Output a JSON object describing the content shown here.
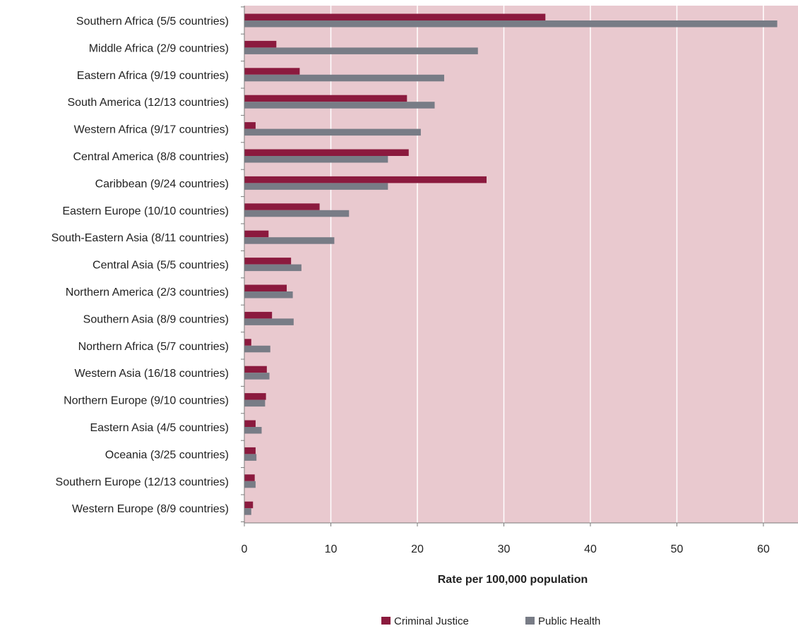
{
  "chart_data": {
    "type": "bar",
    "orientation": "horizontal",
    "categories": [
      "Southern Africa (5/5 countries)",
      "Middle Africa (2/9 countries)",
      "Eastern Africa (9/19 countries)",
      "South America (12/13 countries)",
      "Western Africa (9/17 countries)",
      "Central America (8/8 countries)",
      "Caribbean (9/24 countries)",
      "Eastern Europe (10/10 countries)",
      "South-Eastern Asia (8/11 countries)",
      "Central Asia (5/5 countries)",
      "Northern America (2/3 countries)",
      "Southern Asia (8/9 countries)",
      "Northern Africa (5/7 countries)",
      "Western Asia (16/18 countries)",
      "Northern Europe (9/10 countries)",
      "Eastern Asia (4/5 countries)",
      "Oceania (3/25 countries)",
      "Southern Europe (12/13 countries)",
      "Western Europe (8/9 countries)"
    ],
    "series": [
      {
        "name": "Criminal Justice",
        "color": "#8b1a3e",
        "values": [
          34.8,
          3.7,
          6.4,
          18.8,
          1.3,
          19.0,
          28.0,
          8.7,
          2.8,
          5.4,
          4.9,
          3.2,
          0.8,
          2.6,
          2.5,
          1.3,
          1.3,
          1.2,
          1.0
        ]
      },
      {
        "name": "Public Health",
        "color": "#787c86",
        "values": [
          61.6,
          27.0,
          23.1,
          22.0,
          20.4,
          16.6,
          16.6,
          12.1,
          10.4,
          6.6,
          5.6,
          5.7,
          3.0,
          2.9,
          2.4,
          2.0,
          1.4,
          1.3,
          0.8
        ]
      }
    ],
    "xlabel": "Rate per 100,000 population",
    "xlim": [
      0,
      64
    ],
    "xticks": [
      "0",
      "10",
      "20",
      "30",
      "40",
      "50",
      "60"
    ],
    "grid": true,
    "legend_position": "bottom",
    "plot_background": "#e9c9cf"
  }
}
